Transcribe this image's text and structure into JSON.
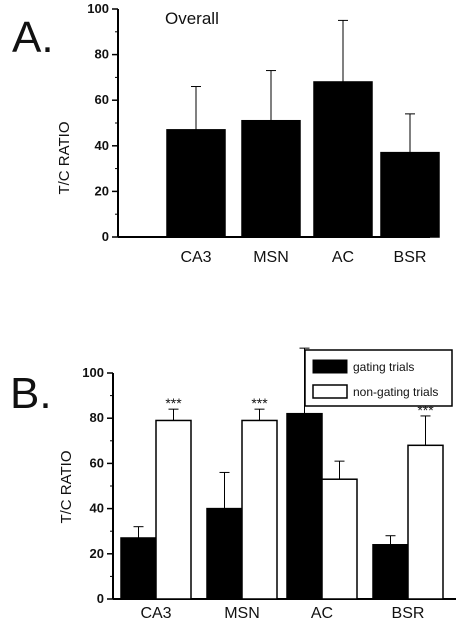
{
  "chart_data": [
    {
      "type": "bar",
      "panel_label": "A.",
      "title": "Overall",
      "xlabel": "",
      "ylabel": "T/C RATIO",
      "ylim": [
        0,
        100
      ],
      "yticks": [
        "0",
        "20",
        "40",
        "60",
        "80",
        "100"
      ],
      "grid": false,
      "categories": [
        "CA3",
        "MSN",
        "AC",
        "BSR"
      ],
      "series": [
        {
          "values": [
            47,
            51,
            68,
            37
          ],
          "errors": [
            19,
            22,
            27,
            17
          ],
          "color": "#000000"
        }
      ]
    },
    {
      "type": "bar",
      "panel_label": "B.",
      "title": "",
      "xlabel": "",
      "ylabel": "T/C RATIO",
      "ylim": [
        0,
        100
      ],
      "yticks": [
        "0",
        "20",
        "40",
        "60",
        "80",
        "100"
      ],
      "grid": false,
      "legend_position": "top-right",
      "categories": [
        "CA3",
        "MSN",
        "AC",
        "BSR"
      ],
      "series": [
        {
          "name": "gating trials",
          "values": [
            27,
            40,
            82,
            24
          ],
          "errors": [
            5,
            16,
            29,
            4
          ],
          "color": "#000000"
        },
        {
          "name": "non-gating trials",
          "values": [
            79,
            79,
            53,
            68
          ],
          "errors": [
            5,
            5,
            8,
            13
          ],
          "color": "#ffffff"
        }
      ],
      "significance": [
        "***",
        "***",
        "",
        "***"
      ]
    }
  ]
}
